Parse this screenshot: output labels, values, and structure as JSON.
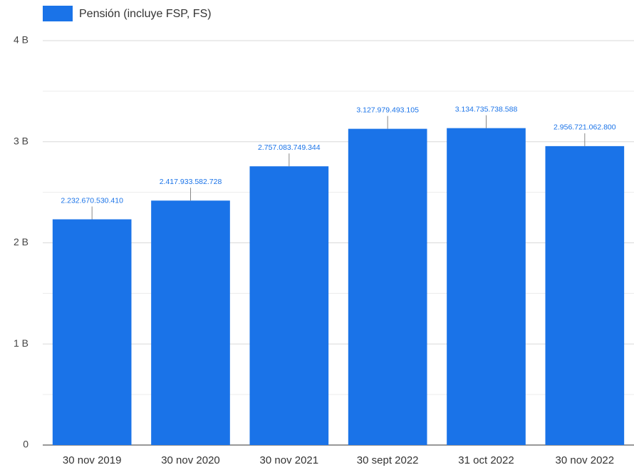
{
  "chart_data": {
    "type": "bar",
    "legend": "Pensión (incluye FSP, FS)",
    "categories": [
      "30 nov 2019",
      "30 nov 2020",
      "30 nov 2021",
      "30 sept 2022",
      "31 oct 2022",
      "30 nov 2022"
    ],
    "values": [
      2232670530.41,
      2417933582.728,
      2757083749.344,
      3127979493.105,
      3134735738.588,
      2956721062.8
    ],
    "value_labels": [
      "2.232.670.530.410",
      "2.417.933.582.728",
      "2.757.083.749.344",
      "3.127.979.493.105",
      "3.134.735.738.588",
      "2.956.721.062.800"
    ],
    "color": "#1a73e8",
    "ylim": [
      0,
      4000000000
    ],
    "yticks": [
      0,
      {
        "value": 1000000000,
        "label": "1 B"
      },
      {
        "value": 2000000000,
        "label": "2 B"
      },
      {
        "value": 3000000000,
        "label": "3 B"
      },
      {
        "value": 4000000000,
        "label": "4 B"
      }
    ],
    "minor_yticks": [
      500000000,
      1500000000,
      2500000000,
      3500000000
    ],
    "grid": true
  }
}
